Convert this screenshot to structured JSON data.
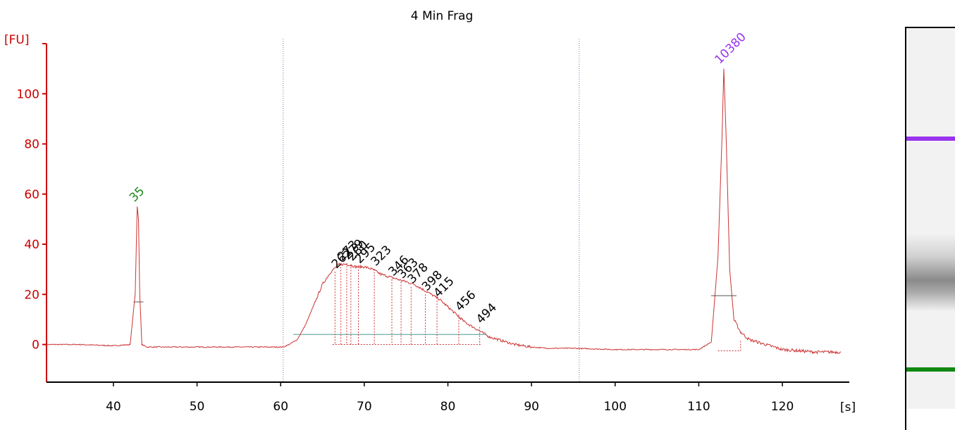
{
  "chart_data": {
    "type": "line",
    "title": "4 Min Frag",
    "ylabel": "[FU]",
    "xlabel": "[s]",
    "xlim": [
      32,
      128
    ],
    "ylim": [
      -15,
      120
    ],
    "x_ticks": [
      40,
      50,
      60,
      70,
      80,
      90,
      100,
      110,
      120
    ],
    "y_ticks": [
      0,
      20,
      40,
      60,
      80,
      100
    ],
    "grid": false,
    "colors": {
      "axis": "#cc0000",
      "trace": "#cc3333",
      "lower_marker": "#1a8a1a",
      "upper_marker": "#9933ee",
      "region_line": "#7777bb",
      "peak_label": "#000000",
      "baseline": "#4a9a8a"
    },
    "series": [
      {
        "x": [
          32,
          36,
          40,
          42,
          42.6,
          42.85,
          43.0,
          43.15,
          43.4,
          44,
          48,
          52,
          56,
          59,
          60.3,
          61,
          62,
          63,
          64,
          65,
          66,
          67,
          68,
          69,
          70,
          71,
          72,
          73,
          74,
          75,
          76,
          77,
          78,
          79,
          80,
          81,
          82,
          83,
          84,
          85,
          86,
          87,
          88,
          89,
          90,
          92,
          95,
          100,
          105,
          110,
          111.5,
          112.3,
          112.8,
          113.0,
          113.3,
          113.7,
          114.2,
          115,
          116,
          118,
          120,
          124,
          127
        ],
        "y": [
          0,
          0,
          -0.5,
          0,
          20,
          55,
          50,
          20,
          0,
          -1,
          -1,
          -1,
          -1,
          -1,
          -1,
          0,
          2,
          8,
          16,
          24,
          29,
          32,
          32,
          31,
          31,
          30,
          28,
          27,
          26,
          25,
          24,
          22,
          20,
          18,
          15,
          12,
          9,
          7,
          5,
          3,
          2,
          1,
          0,
          -0.5,
          -1,
          -1.5,
          -1.5,
          -2,
          -2,
          -2,
          1,
          35,
          85,
          110,
          80,
          30,
          10,
          5,
          2,
          0,
          -2,
          -3,
          -3
        ]
      }
    ],
    "region_lines_x": [
      60.3,
      95.7
    ],
    "markers": [
      {
        "label": "35",
        "x": 43.0,
        "y": 55,
        "half_height": 17
      },
      {
        "label": "10380",
        "x": 113.0,
        "y": 110,
        "half_height": 19.5
      }
    ],
    "peaks": [
      {
        "label": "262",
        "x": 66.5,
        "y": 29
      },
      {
        "label": "273",
        "x": 67.2,
        "y": 32
      },
      {
        "label": "279",
        "x": 67.9,
        "y": 32.5
      },
      {
        "label": "280",
        "x": 68.4,
        "y": 32
      },
      {
        "label": "295",
        "x": 69.3,
        "y": 31
      },
      {
        "label": "323",
        "x": 71.2,
        "y": 30
      },
      {
        "label": "346",
        "x": 73.3,
        "y": 26
      },
      {
        "label": "363",
        "x": 74.4,
        "y": 25
      },
      {
        "label": "378",
        "x": 75.6,
        "y": 23
      },
      {
        "label": "398",
        "x": 77.3,
        "y": 20
      },
      {
        "label": "415",
        "x": 78.7,
        "y": 17.5
      },
      {
        "label": "456",
        "x": 81.3,
        "y": 12
      },
      {
        "label": "494",
        "x": 83.8,
        "y": 7
      }
    ],
    "legend": "none"
  },
  "gel": {
    "colors": {
      "background": "#f2f2f2",
      "upper_band": "#9933ee",
      "lower_band": "#118811",
      "smear": "#777777"
    }
  }
}
